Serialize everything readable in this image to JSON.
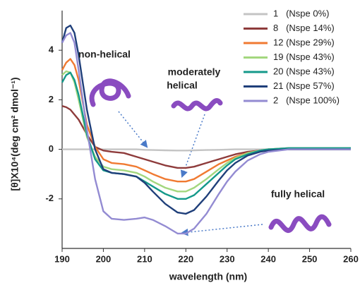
{
  "chart_data": {
    "type": "line",
    "xlabel": "wavelength (nm)",
    "ylabel": "[θ]X10⁴(deg cm² dmol⁻¹)",
    "x": [
      190,
      191,
      192,
      193,
      194,
      196,
      198,
      200,
      202,
      205,
      208,
      210,
      212,
      215,
      218,
      220,
      222,
      225,
      228,
      230,
      232,
      235,
      238,
      240,
      245,
      250,
      260
    ],
    "xlim": [
      190,
      260
    ],
    "xticks": [
      190,
      200,
      210,
      220,
      230,
      240,
      250,
      260
    ],
    "ylim": [
      -4,
      5.6
    ],
    "yticks": [
      -2,
      0,
      2,
      4
    ],
    "grid": false,
    "legend": "upper right",
    "annotations": [
      "non-helical",
      "moderately",
      "helical",
      "fully helical"
    ],
    "series": [
      {
        "name": "1   (Nspe 0%)",
        "color": "#c4c4c4",
        "values": [
          0,
          0,
          0,
          0,
          0,
          0,
          0,
          0,
          0,
          0,
          0,
          -0.02,
          -0.03,
          -0.04,
          -0.05,
          -0.05,
          -0.04,
          -0.03,
          -0.02,
          -0.01,
          0,
          0,
          0,
          0,
          0,
          0,
          0
        ]
      },
      {
        "name": "8   (Nspe 14%)",
        "color": "#8e3b3b",
        "values": [
          1.75,
          1.7,
          1.6,
          1.4,
          1.2,
          0.6,
          0.1,
          -0.05,
          -0.1,
          -0.15,
          -0.3,
          -0.4,
          -0.5,
          -0.65,
          -0.75,
          -0.75,
          -0.7,
          -0.55,
          -0.4,
          -0.3,
          -0.2,
          -0.1,
          -0.05,
          0,
          0,
          0,
          0
        ]
      },
      {
        "name": "12 (Nspe 29%)",
        "color": "#f07a32",
        "values": [
          3.2,
          3.5,
          3.65,
          3.4,
          2.8,
          1.0,
          0.1,
          -0.4,
          -0.55,
          -0.6,
          -0.7,
          -0.85,
          -1.0,
          -1.2,
          -1.3,
          -1.3,
          -1.2,
          -0.9,
          -0.6,
          -0.45,
          -0.3,
          -0.15,
          -0.05,
          0,
          0.05,
          0.05,
          0.05
        ]
      },
      {
        "name": "19 (Nspe 43%)",
        "color": "#a3d77e",
        "values": [
          3.0,
          3.15,
          3.1,
          2.7,
          2.0,
          0.5,
          -0.3,
          -0.7,
          -0.8,
          -0.85,
          -0.95,
          -1.1,
          -1.3,
          -1.55,
          -1.7,
          -1.7,
          -1.55,
          -1.2,
          -0.8,
          -0.55,
          -0.35,
          -0.15,
          -0.05,
          0,
          0.05,
          0.05,
          0.05
        ]
      },
      {
        "name": "20 (Nspe 43%)",
        "color": "#14998a",
        "values": [
          2.7,
          3.0,
          3.1,
          2.8,
          2.2,
          0.6,
          -0.4,
          -0.85,
          -0.95,
          -1.0,
          -1.1,
          -1.3,
          -1.5,
          -1.8,
          -2.0,
          -2.0,
          -1.85,
          -1.4,
          -0.95,
          -0.65,
          -0.4,
          -0.2,
          -0.05,
          0,
          0.05,
          0.05,
          0.05
        ]
      },
      {
        "name": "21 (Nspe 57%)",
        "color": "#1f3f7a",
        "values": [
          4.3,
          4.9,
          5.0,
          4.7,
          3.8,
          1.6,
          0,
          -0.8,
          -0.95,
          -1.0,
          -1.1,
          -1.35,
          -1.7,
          -2.2,
          -2.55,
          -2.6,
          -2.45,
          -1.9,
          -1.25,
          -0.85,
          -0.55,
          -0.25,
          -0.1,
          -0.05,
          0,
          0,
          0
        ]
      },
      {
        "name": "2   (Nspe 100%)",
        "color": "#938bd2",
        "values": [
          4.3,
          4.6,
          4.7,
          4.3,
          3.2,
          0.8,
          -1.2,
          -2.5,
          -2.8,
          -2.85,
          -2.8,
          -2.75,
          -2.85,
          -3.1,
          -3.4,
          -3.4,
          -3.2,
          -2.6,
          -1.8,
          -1.3,
          -0.9,
          -0.45,
          -0.2,
          -0.1,
          0,
          0,
          0
        ]
      }
    ]
  }
}
